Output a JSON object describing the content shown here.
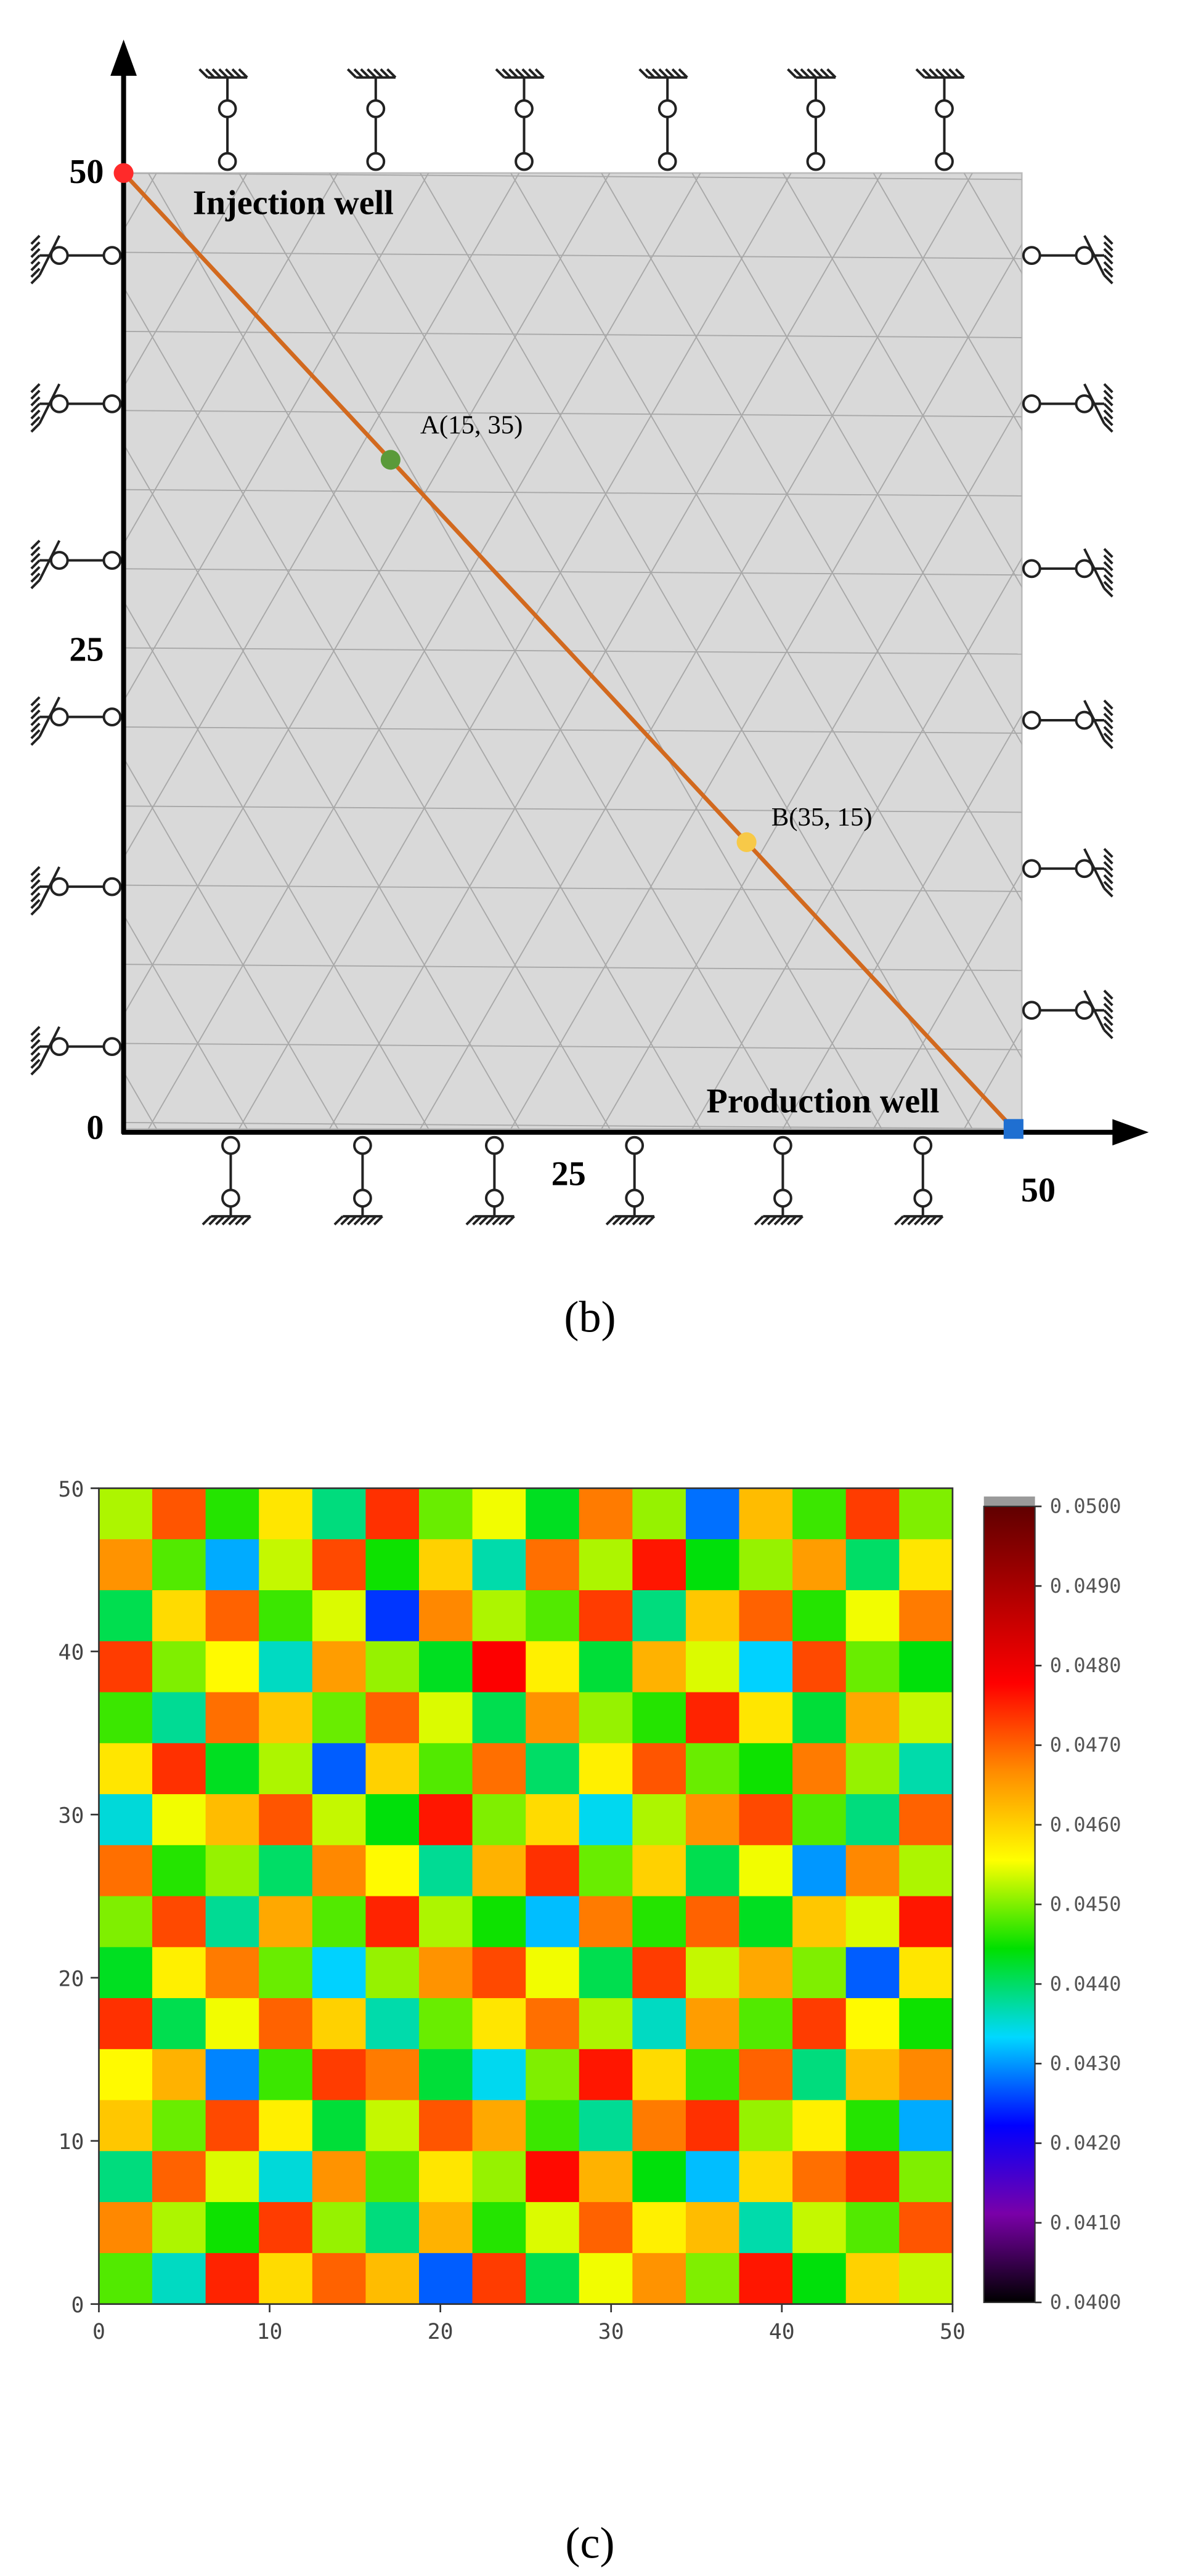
{
  "chart_data": [
    {
      "type": "mesh",
      "caption": "(b)",
      "xlim": [
        0,
        50
      ],
      "ylim": [
        0,
        50
      ],
      "xticks": [
        25,
        50
      ],
      "yticks": [
        0,
        25,
        50
      ],
      "line_color": "#d2691e",
      "series": [
        {
          "name": "Injection well",
          "color": "#ff2a2a",
          "x": [
            0
          ],
          "values": [
            50
          ]
        },
        {
          "name": "A(15, 35)",
          "color": "#5a9a3a",
          "x": [
            15
          ],
          "values": [
            35
          ]
        },
        {
          "name": "B(35, 15)",
          "color": "#f7c948",
          "x": [
            35
          ],
          "values": [
            15
          ]
        },
        {
          "name": "Production well",
          "color": "#1f6fd1",
          "x": [
            50
          ],
          "values": [
            0
          ]
        }
      ]
    },
    {
      "type": "heatmap",
      "caption": "(c)",
      "xlim": [
        0,
        50
      ],
      "ylim": [
        0,
        50
      ],
      "xticks": [
        0,
        10,
        20,
        30,
        40,
        50
      ],
      "yticks": [
        0,
        10,
        20,
        30,
        40,
        50
      ],
      "zlim": [
        0.04,
        0.05
      ],
      "zticks": [
        {
          "value": 0.04,
          "label": "0.0400"
        },
        {
          "value": 0.041,
          "label": "0.0410"
        },
        {
          "value": 0.042,
          "label": "0.0420"
        },
        {
          "value": 0.043,
          "label": "0.0430"
        },
        {
          "value": 0.044,
          "label": "0.0440"
        },
        {
          "value": 0.045,
          "label": "0.0450"
        },
        {
          "value": 0.046,
          "label": "0.0460"
        },
        {
          "value": 0.047,
          "label": "0.0470"
        },
        {
          "value": 0.048,
          "label": "0.0480"
        },
        {
          "value": 0.049,
          "label": "0.0490"
        },
        {
          "value": 0.05,
          "label": "0.0500"
        }
      ],
      "colors": [
        "#000000",
        "#7a00a8",
        "#0000ff",
        "#00d8ff",
        "#00e000",
        "#ffff00",
        "#ff8c00",
        "#ff0000",
        "#b00000",
        "#600000"
      ],
      "values": [
        [
          0.0452,
          0.0471,
          0.0446,
          0.0458,
          0.0439,
          0.0474,
          0.0449,
          0.0455,
          0.0443,
          0.0468,
          0.0451,
          0.0428,
          0.0462,
          0.0447,
          0.0473,
          0.045
        ],
        [
          0.0466,
          0.0448,
          0.0431,
          0.0453,
          0.0472,
          0.0445,
          0.046,
          0.0437,
          0.0469,
          0.0452,
          0.0476,
          0.0444,
          0.0451,
          0.0465,
          0.044,
          0.0458
        ],
        [
          0.0441,
          0.0459,
          0.047,
          0.0447,
          0.0454,
          0.0425,
          0.0467,
          0.0452,
          0.0448,
          0.0473,
          0.0439,
          0.0461,
          0.047,
          0.0446,
          0.0455,
          0.0468
        ],
        [
          0.0473,
          0.045,
          0.0456,
          0.0436,
          0.0465,
          0.0451,
          0.0443,
          0.0478,
          0.0457,
          0.0442,
          0.0463,
          0.0454,
          0.0433,
          0.0472,
          0.0449,
          0.0444
        ],
        [
          0.0447,
          0.0438,
          0.0469,
          0.0461,
          0.0449,
          0.047,
          0.0454,
          0.0441,
          0.0466,
          0.0451,
          0.0446,
          0.0475,
          0.0458,
          0.0442,
          0.0464,
          0.0453
        ],
        [
          0.0458,
          0.0474,
          0.0443,
          0.0452,
          0.0427,
          0.046,
          0.0448,
          0.0469,
          0.044,
          0.0457,
          0.0471,
          0.0449,
          0.0445,
          0.0468,
          0.0451,
          0.0437
        ],
        [
          0.0435,
          0.0455,
          0.0462,
          0.0471,
          0.0453,
          0.0444,
          0.0476,
          0.045,
          0.0459,
          0.0434,
          0.0452,
          0.0466,
          0.0472,
          0.0448,
          0.0439,
          0.047
        ],
        [
          0.0469,
          0.0446,
          0.0451,
          0.044,
          0.0467,
          0.0456,
          0.0438,
          0.0463,
          0.0474,
          0.0449,
          0.046,
          0.0441,
          0.0455,
          0.043,
          0.0467,
          0.0452
        ],
        [
          0.045,
          0.0472,
          0.0438,
          0.0464,
          0.0448,
          0.0475,
          0.0452,
          0.0445,
          0.0432,
          0.0468,
          0.0446,
          0.047,
          0.0443,
          0.0461,
          0.0454,
          0.0476
        ],
        [
          0.0443,
          0.0457,
          0.0468,
          0.0449,
          0.0433,
          0.0451,
          0.0466,
          0.0472,
          0.0455,
          0.0441,
          0.0473,
          0.0453,
          0.0464,
          0.045,
          0.0427,
          0.0458
        ],
        [
          0.0474,
          0.0441,
          0.0455,
          0.047,
          0.046,
          0.0437,
          0.0449,
          0.0458,
          0.0469,
          0.0452,
          0.0436,
          0.0465,
          0.0448,
          0.0473,
          0.0456,
          0.0445
        ],
        [
          0.0456,
          0.0463,
          0.0429,
          0.0447,
          0.0473,
          0.0468,
          0.0442,
          0.0434,
          0.045,
          0.0476,
          0.0459,
          0.0447,
          0.047,
          0.0439,
          0.0462,
          0.0467
        ],
        [
          0.0461,
          0.0449,
          0.0472,
          0.0457,
          0.0442,
          0.0453,
          0.0471,
          0.0464,
          0.0447,
          0.0438,
          0.0468,
          0.0474,
          0.0451,
          0.0457,
          0.0446,
          0.0431
        ],
        [
          0.0439,
          0.047,
          0.0454,
          0.0435,
          0.0466,
          0.0448,
          0.0458,
          0.0451,
          0.0477,
          0.0463,
          0.0444,
          0.0432,
          0.0459,
          0.0469,
          0.0474,
          0.045
        ],
        [
          0.0467,
          0.0452,
          0.0445,
          0.0473,
          0.0451,
          0.0439,
          0.0463,
          0.0446,
          0.0454,
          0.047,
          0.0457,
          0.0462,
          0.0437,
          0.0453,
          0.0448,
          0.0471
        ],
        [
          0.0448,
          0.0436,
          0.0475,
          0.0459,
          0.047,
          0.0462,
          0.0427,
          0.0473,
          0.0441,
          0.0455,
          0.0466,
          0.045,
          0.0476,
          0.0444,
          0.046,
          0.0453
        ]
      ]
    }
  ]
}
